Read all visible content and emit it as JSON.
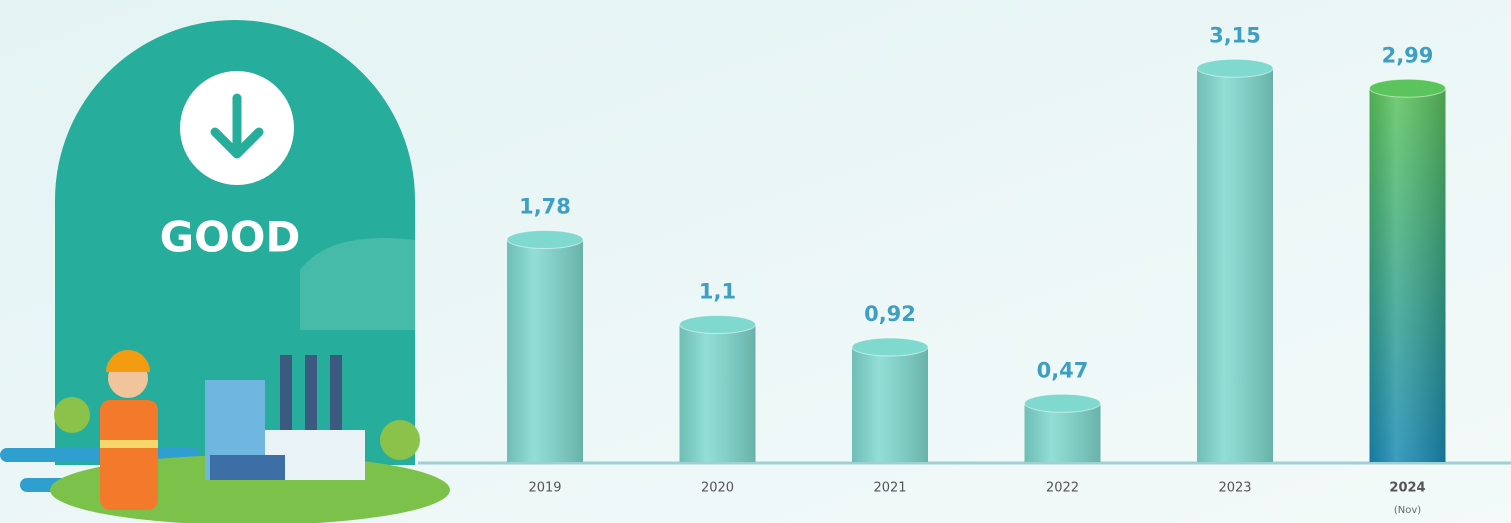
{
  "chart_data": {
    "type": "bar",
    "badge": "GOOD",
    "categories": [
      "2019",
      "2020",
      "2021",
      "2022",
      "2023",
      "2024"
    ],
    "category_note": "(Nov)",
    "values": [
      1.78,
      1.1,
      0.92,
      0.47,
      3.15,
      2.99
    ],
    "value_labels": [
      "1,78",
      "1,1",
      "0,92",
      "0,47",
      "3,15",
      "2,99"
    ],
    "colors": [
      "#7fd9cf",
      "#7fd9cf",
      "#7fd9cf",
      "#7fd9cf",
      "#7fd9cf",
      "#3fae7a"
    ],
    "highlight_gradient": [
      "#5cc45c",
      "#1a8bb5"
    ]
  }
}
